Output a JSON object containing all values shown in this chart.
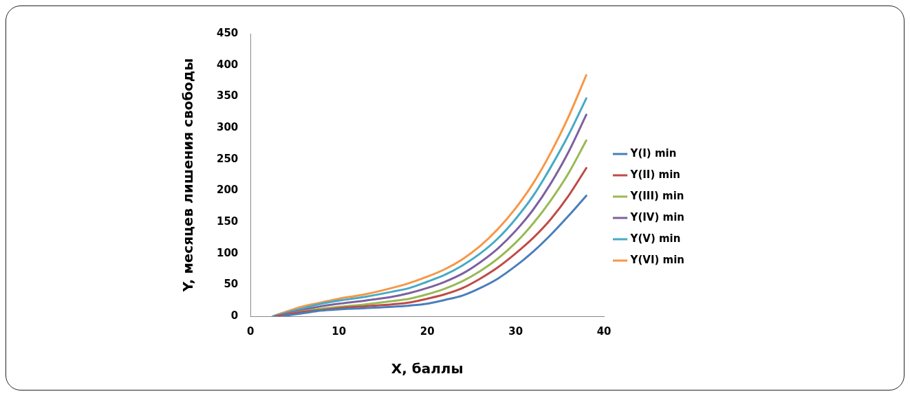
{
  "chart_data": {
    "type": "line",
    "xlabel": "X, баллы",
    "ylabel": "Y, месяцев лишения свободы",
    "xlim": [
      0,
      40
    ],
    "xticks": [
      0,
      10,
      20,
      30,
      40
    ],
    "ylim": [
      0,
      450
    ],
    "yticks": [
      0,
      50,
      100,
      150,
      200,
      250,
      300,
      350,
      400,
      450
    ],
    "grid": false,
    "legend": "right",
    "marker": "none",
    "line_style": "solid",
    "series": [
      {
        "name": "Y(I) min",
        "color": "#4a7ebb",
        "x": [
          3.5,
          6,
          8,
          10,
          13,
          16,
          18,
          20,
          22,
          24,
          26,
          28,
          30,
          32,
          34,
          36,
          38
        ],
        "values": [
          0,
          5,
          9,
          11,
          13,
          15,
          17,
          20,
          26,
          33,
          45,
          60,
          80,
          103,
          130,
          160,
          192
        ]
      },
      {
        "name": "Y(II) min",
        "color": "#be4b48",
        "x": [
          3,
          6,
          8,
          10,
          13,
          16,
          18,
          20,
          22,
          24,
          26,
          28,
          30,
          32,
          34,
          36,
          38
        ],
        "values": [
          0,
          7,
          10,
          13,
          16,
          19,
          22,
          28,
          35,
          45,
          60,
          78,
          100,
          125,
          155,
          192,
          236
        ]
      },
      {
        "name": "Y(III) min",
        "color": "#98b954",
        "x": [
          3,
          6,
          8,
          10,
          13,
          16,
          18,
          20,
          22,
          24,
          26,
          28,
          30,
          32,
          34,
          36,
          38
        ],
        "values": [
          0,
          8,
          12,
          15,
          19,
          24,
          28,
          35,
          44,
          56,
          72,
          92,
          117,
          148,
          185,
          228,
          280
        ]
      },
      {
        "name": "Y(IV) min",
        "color": "#7d60a0",
        "x": [
          2.8,
          6,
          8,
          10,
          13,
          16,
          18,
          20,
          22,
          24,
          26,
          28,
          30,
          32,
          34,
          36,
          38
        ],
        "values": [
          0,
          10,
          16,
          20,
          25,
          31,
          37,
          45,
          55,
          68,
          86,
          108,
          136,
          170,
          212,
          262,
          321
        ]
      },
      {
        "name": "Y(V) min",
        "color": "#46aac5",
        "x": [
          2.6,
          6,
          8,
          10,
          13,
          16,
          18,
          20,
          22,
          24,
          26,
          28,
          30,
          32,
          34,
          36,
          38
        ],
        "values": [
          0,
          13,
          20,
          25,
          31,
          39,
          45,
          55,
          66,
          81,
          100,
          124,
          155,
          192,
          238,
          289,
          347
        ]
      },
      {
        "name": "Y(VI) min",
        "color": "#f79646",
        "x": [
          2.5,
          6,
          8,
          10,
          13,
          16,
          18,
          20,
          22,
          24,
          26,
          28,
          30,
          32,
          34,
          36,
          38
        ],
        "values": [
          0,
          16,
          22,
          28,
          35,
          45,
          53,
          63,
          75,
          91,
          112,
          139,
          172,
          212,
          261,
          318,
          384
        ]
      }
    ]
  }
}
